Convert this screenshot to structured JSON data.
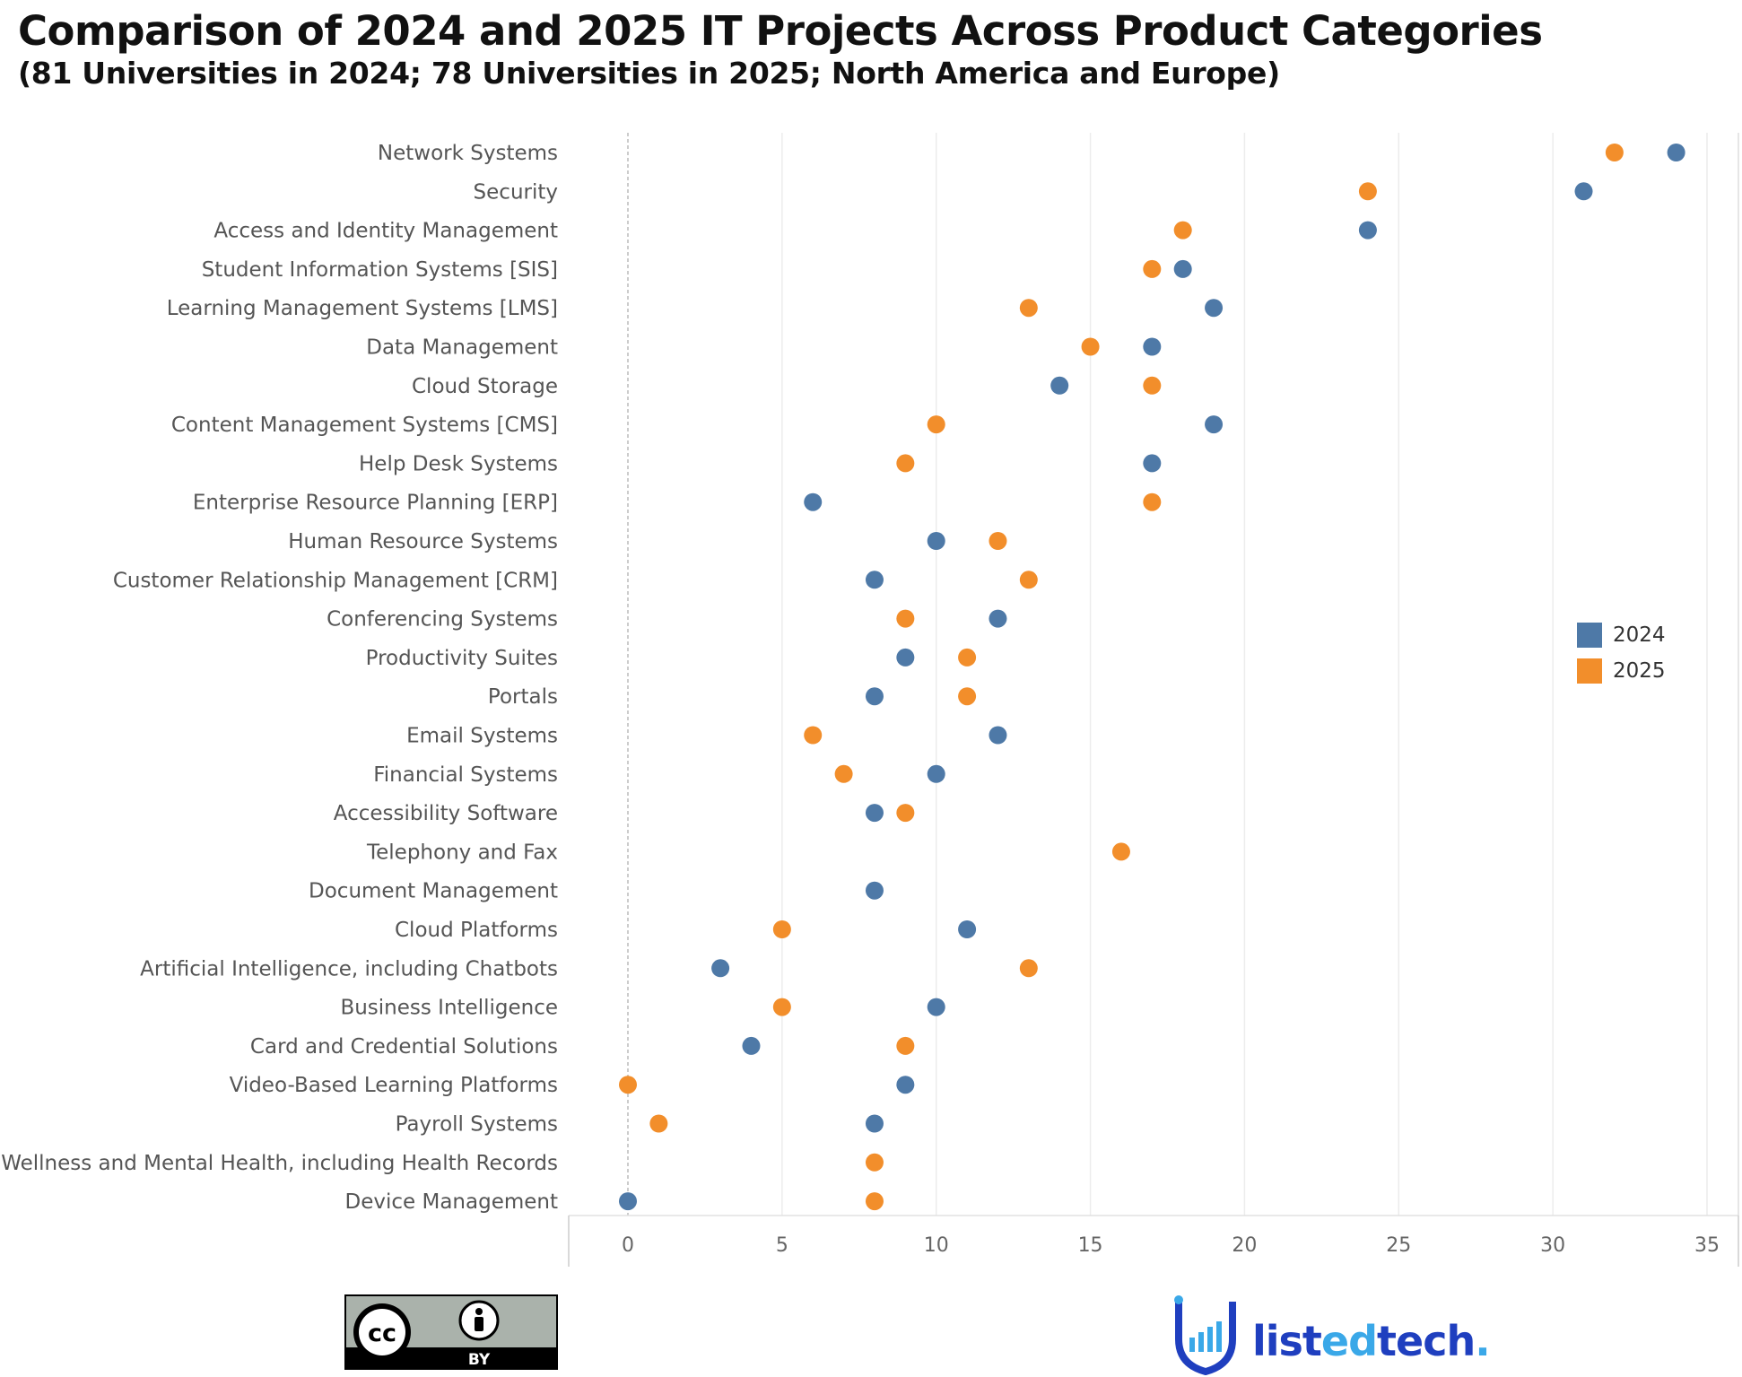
{
  "header": {
    "title": "Comparison of 2024 and 2025 IT Projects Across Product Categories",
    "subtitle": "(81 Universities in 2024; 78 Universities in 2025; North America and Europe)"
  },
  "legend": {
    "items": [
      {
        "label": "2024",
        "color": "#4e79a7"
      },
      {
        "label": "2025",
        "color": "#f28e2b"
      }
    ]
  },
  "chart_data": {
    "type": "scatter",
    "title": "Comparison of 2024 and 2025 IT Projects Across Product Categories",
    "subtitle": "(81 Universities in 2024; 78 Universities in 2025; North America and Europe)",
    "xlabel": "",
    "ylabel": "",
    "xlim": [
      -2,
      36
    ],
    "xticks": [
      0,
      5,
      10,
      15,
      20,
      25,
      30,
      35
    ],
    "grid": true,
    "legend_position": "right",
    "categories": [
      "Network Systems",
      "Security",
      "Access and Identity Management",
      "Student Information Systems [SIS]",
      "Learning Management Systems [LMS]",
      "Data Management",
      "Cloud Storage",
      "Content Management Systems [CMS]",
      "Help Desk Systems",
      "Enterprise Resource Planning [ERP]",
      "Human Resource Systems",
      "Customer Relationship Management [CRM]",
      "Conferencing Systems",
      "Productivity Suites",
      "Portals",
      "Email Systems",
      "Financial Systems",
      "Accessibility Software",
      "Telephony and Fax",
      "Document Management",
      "Cloud Platforms",
      "Artificial Intelligence, including Chatbots",
      "Business Intelligence",
      "Card and Credential Solutions",
      "Video-Based Learning Platforms",
      "Payroll Systems",
      "Wellness and Mental Health, including Health Records",
      "Device Management"
    ],
    "series": [
      {
        "name": "2024",
        "color": "#4e79a7",
        "values": [
          34,
          31,
          24,
          18,
          19,
          17,
          14,
          19,
          17,
          6,
          10,
          8,
          12,
          9,
          8,
          12,
          10,
          8,
          null,
          8,
          11,
          3,
          10,
          4,
          9,
          8,
          null,
          0
        ]
      },
      {
        "name": "2025",
        "color": "#f28e2b",
        "values": [
          32,
          24,
          18,
          17,
          13,
          15,
          17,
          10,
          9,
          17,
          12,
          13,
          9,
          11,
          11,
          6,
          7,
          9,
          16,
          null,
          5,
          13,
          5,
          9,
          0,
          1,
          8,
          8
        ]
      }
    ]
  },
  "footer": {
    "license_badge_text": "BY",
    "cc_text": "cc",
    "brand_part1": "list",
    "brand_part2": "ed",
    "brand_part3": "tech",
    "brand_dot": "."
  }
}
